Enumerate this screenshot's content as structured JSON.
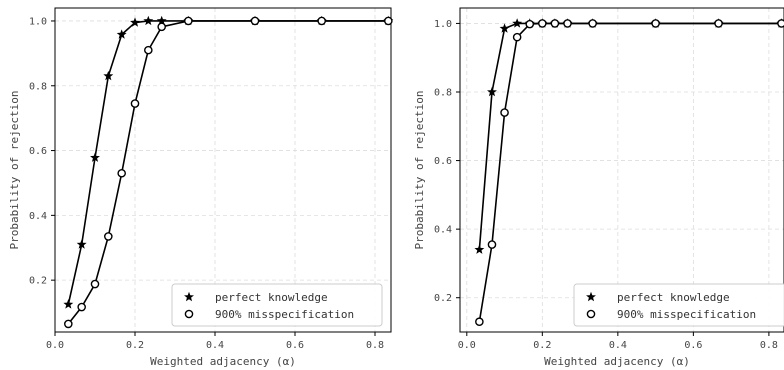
{
  "chart_data": [
    {
      "type": "line",
      "xlabel": "Weighted adjacency (α)",
      "ylabel": "Probability of rejection",
      "xlim": [
        0.0,
        0.84
      ],
      "ylim": [
        0.04,
        1.04
      ],
      "xticks": [
        0.0,
        0.2,
        0.4,
        0.6,
        0.8
      ],
      "xtick_labels": [
        "0.0",
        "0.2",
        "0.4",
        "0.6",
        "0.8"
      ],
      "yticks": [
        0.2,
        0.4,
        0.6,
        0.8,
        1.0
      ],
      "ytick_labels": [
        "0.2",
        "0.4",
        "0.6",
        "0.8",
        "1.0"
      ],
      "grid": true,
      "legend_position": "bottom-right",
      "series": [
        {
          "name": "perfect knowledge",
          "marker": "star",
          "x": [
            0.0333,
            0.0667,
            0.1,
            0.1333,
            0.1667,
            0.2,
            0.2333,
            0.2667,
            0.3333,
            0.5,
            0.6667,
            0.8333
          ],
          "y": [
            0.125,
            0.31,
            0.578,
            0.83,
            0.958,
            0.995,
            1.0,
            1.0,
            1.0,
            1.0,
            1.0,
            1.0
          ]
        },
        {
          "name": "900% misspecification",
          "marker": "open-circle",
          "x": [
            0.0333,
            0.0667,
            0.1,
            0.1333,
            0.1667,
            0.2,
            0.2333,
            0.2667,
            0.3333,
            0.5,
            0.6667,
            0.8333
          ],
          "y": [
            0.065,
            0.117,
            0.188,
            0.335,
            0.53,
            0.745,
            0.91,
            0.982,
            1.0,
            1.0,
            1.0,
            1.0
          ]
        }
      ]
    },
    {
      "type": "line",
      "xlabel": "Weighted adjacency (α)",
      "ylabel": "Probability of rejection",
      "xlim": [
        -0.018,
        0.84
      ],
      "ylim": [
        0.1,
        1.045
      ],
      "xticks": [
        0.0,
        0.2,
        0.4,
        0.6,
        0.8
      ],
      "xtick_labels": [
        "0.0",
        "0.2",
        "0.4",
        "0.6",
        "0.8"
      ],
      "yticks": [
        0.2,
        0.4,
        0.6,
        0.8,
        1.0
      ],
      "ytick_labels": [
        "0.2",
        "0.4",
        "0.6",
        "0.8",
        "1.0"
      ],
      "grid": true,
      "legend_position": "bottom-right",
      "series": [
        {
          "name": "perfect knowledge",
          "marker": "star",
          "x": [
            0.0333,
            0.0667,
            0.1,
            0.1333,
            0.1667,
            0.2,
            0.2333,
            0.2667,
            0.3333,
            0.5,
            0.6667,
            0.8333
          ],
          "y": [
            0.34,
            0.8,
            0.985,
            1.0,
            1.0,
            1.0,
            1.0,
            1.0,
            1.0,
            1.0,
            1.0,
            1.0
          ]
        },
        {
          "name": "900% misspecification",
          "marker": "open-circle",
          "x": [
            0.0333,
            0.0667,
            0.1,
            0.1333,
            0.1667,
            0.2,
            0.2333,
            0.2667,
            0.3333,
            0.5,
            0.6667,
            0.8333
          ],
          "y": [
            0.13,
            0.355,
            0.74,
            0.96,
            0.998,
            1.0,
            1.0,
            1.0,
            1.0,
            1.0,
            1.0,
            1.0
          ]
        }
      ]
    }
  ]
}
